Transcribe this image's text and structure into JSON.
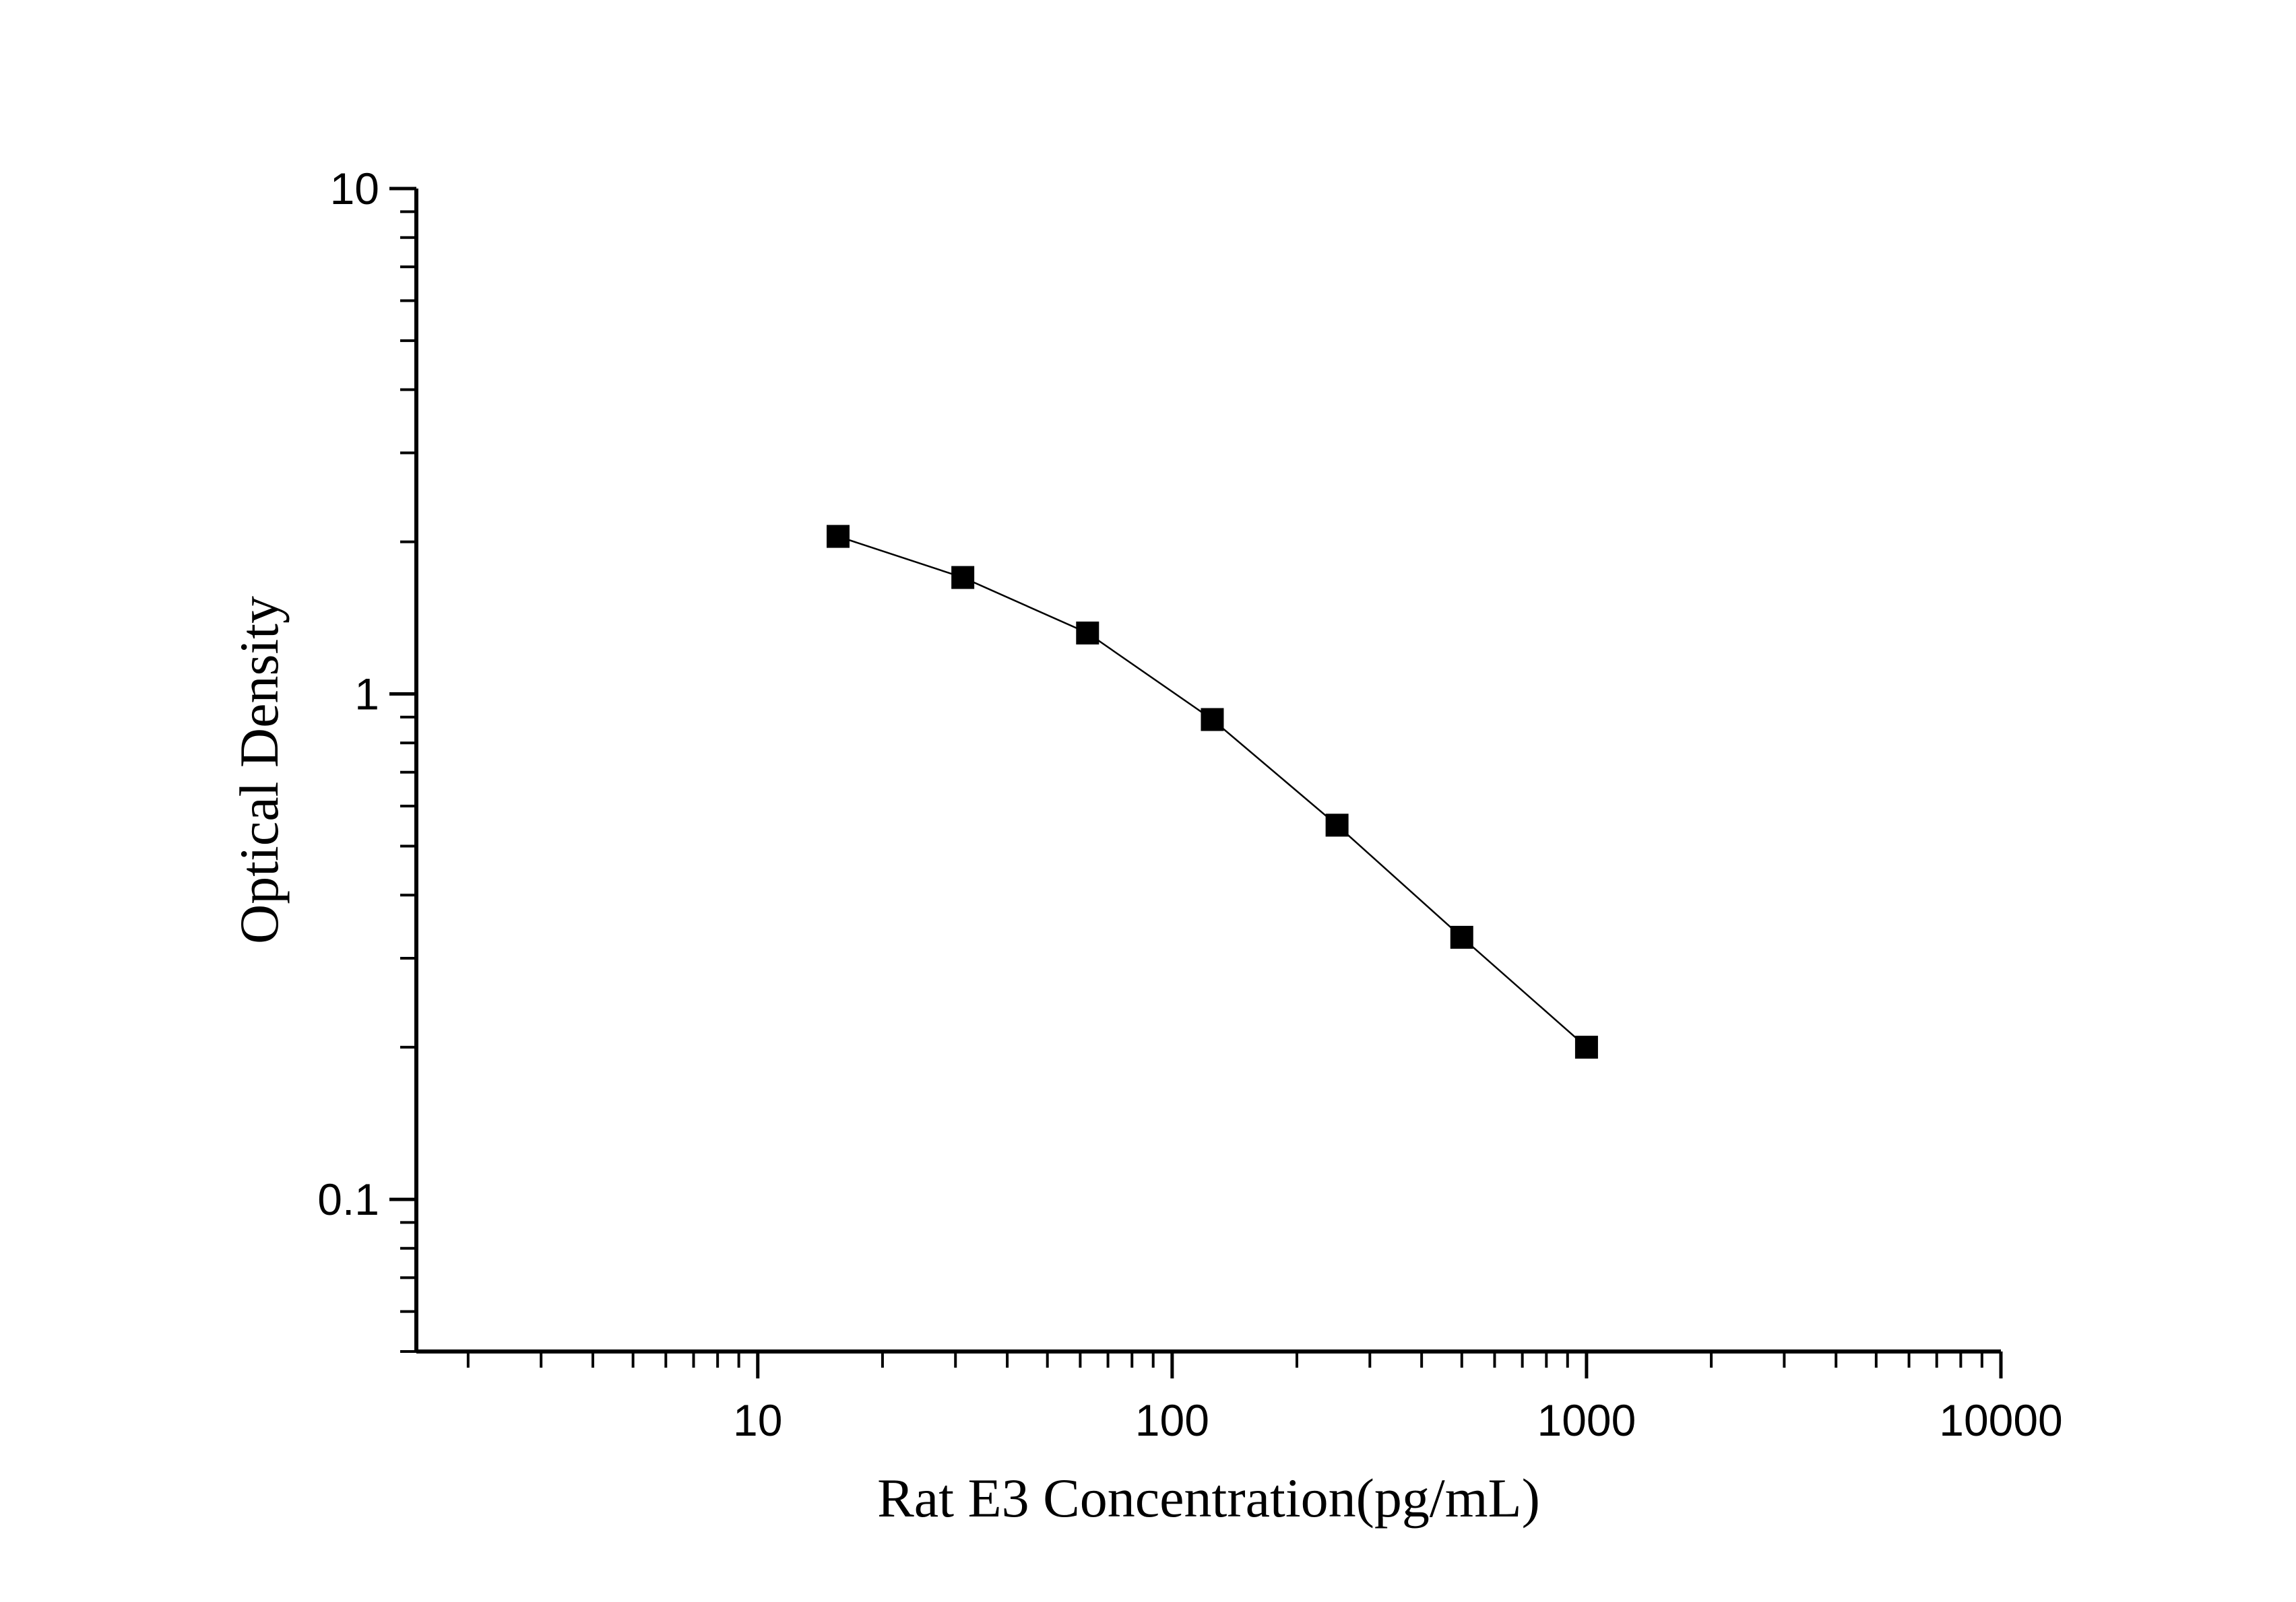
{
  "chart_data": {
    "type": "scatter",
    "title": "",
    "xlabel": "Rat E3 Concentration(pg/mL)",
    "ylabel": "Optical Density",
    "xscale": "log",
    "yscale": "log",
    "xlim": [
      1.5,
      10000
    ],
    "ylim": [
      0.05,
      10
    ],
    "x_ticks": [
      {
        "value": 10,
        "label": "10"
      },
      {
        "value": 100,
        "label": "100"
      },
      {
        "value": 1000,
        "label": "1000"
      },
      {
        "value": 10000,
        "label": "10000"
      }
    ],
    "y_ticks": [
      {
        "value": 0.1,
        "label": "0.1"
      },
      {
        "value": 1,
        "label": "1"
      },
      {
        "value": 10,
        "label": "10"
      }
    ],
    "grid": false,
    "legend": "none",
    "marker": "square",
    "series": [
      {
        "x": [
          15.625,
          31.25,
          62.5,
          125,
          250,
          500,
          1000
        ],
        "y": [
          2.05,
          1.7,
          1.32,
          0.89,
          0.55,
          0.33,
          0.2
        ]
      }
    ],
    "colors": {
      "line": "#000000",
      "marker": "#000000",
      "axis": "#000000",
      "background": "#ffffff"
    }
  }
}
